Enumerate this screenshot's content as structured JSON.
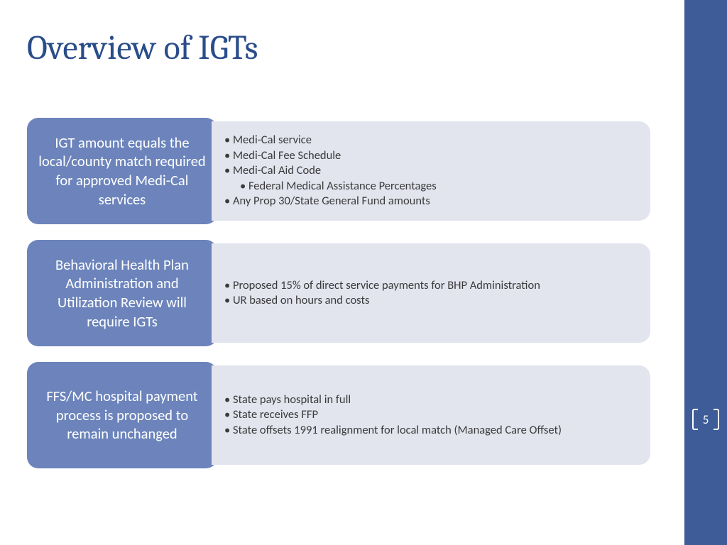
{
  "title": "Overview of IGTs",
  "rows": [
    {
      "label": "IGT amount equals the local/county match required for approved Medi-Cal services",
      "bullets": [
        {
          "text": "Medi-Cal service",
          "indent": 0
        },
        {
          "text": "Medi-Cal Fee Schedule",
          "indent": 0
        },
        {
          "text": "Medi-Cal Aid Code",
          "indent": 0
        },
        {
          "text": "Federal Medical Assistance Percentages",
          "indent": 1
        },
        {
          "text": "Any Prop 30/State General Fund amounts",
          "indent": 0
        }
      ]
    },
    {
      "label": "Behavioral Health Plan Administration and Utilization Review will require IGTs",
      "bullets": [
        {
          "text": "Proposed 15% of direct service payments for BHP Administration",
          "indent": 0
        },
        {
          "text": "UR based on hours and costs",
          "indent": 0
        }
      ]
    },
    {
      "label": "FFS/MC hospital payment process is proposed to remain unchanged",
      "bullets": [
        {
          "text": "State pays hospital in full",
          "indent": 0
        },
        {
          "text": "State receives FFP",
          "indent": 0
        },
        {
          "text": "State offsets 1991 realignment for local match (Managed Care Offset)",
          "indent": 0
        }
      ]
    }
  ],
  "page_number": "5",
  "colors": {
    "title": "#2a4d8a",
    "label_bg": "#6c84bb",
    "label_text": "#ffffff",
    "detail_bg": "#e2e4ee",
    "detail_text": "#3b3b3b",
    "sidebar": "#3e5c98"
  }
}
